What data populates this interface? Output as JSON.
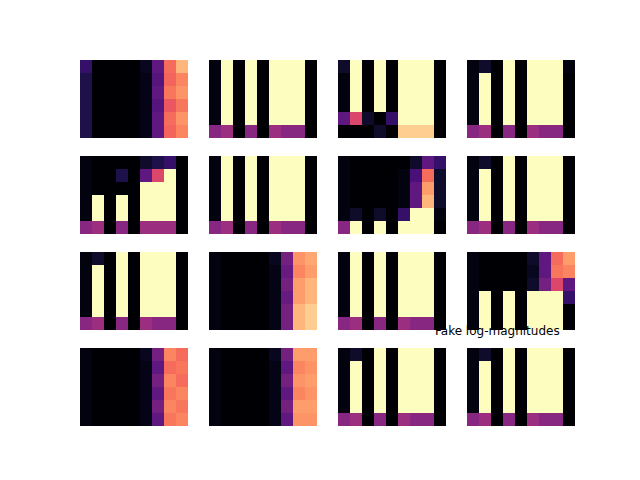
{
  "chart_data": {
    "type": "heatmap",
    "title": "Fake log-magnitudes",
    "color": "magma",
    "tick_labels": false,
    "panels": [
      {
        "cells": [
          [
            0.2,
            0.02,
            0.02,
            0.02,
            0.02,
            0.08,
            0.3,
            0.7,
            0.85
          ],
          [
            0.15,
            0.02,
            0.02,
            0.02,
            0.02,
            0.06,
            0.28,
            0.68,
            0.75
          ],
          [
            0.15,
            0.02,
            0.02,
            0.02,
            0.02,
            0.06,
            0.3,
            0.72,
            0.78
          ],
          [
            0.15,
            0.02,
            0.02,
            0.02,
            0.02,
            0.06,
            0.28,
            0.65,
            0.72
          ],
          [
            0.15,
            0.02,
            0.02,
            0.02,
            0.02,
            0.06,
            0.3,
            0.7,
            0.78
          ],
          [
            0.15,
            0.02,
            0.02,
            0.02,
            0.02,
            0.06,
            0.3,
            0.68,
            0.75
          ]
        ]
      },
      {
        "cells": [
          [
            0.05,
            1,
            0.02,
            1,
            0.02,
            1,
            1,
            1,
            0.02
          ],
          [
            0.05,
            1,
            0.02,
            1,
            0.02,
            1,
            1,
            1,
            0.02
          ],
          [
            0.05,
            1,
            0.02,
            1,
            0.02,
            1,
            1,
            1,
            0.02
          ],
          [
            0.05,
            1,
            0.02,
            1,
            0.02,
            1,
            1,
            1,
            0.02
          ],
          [
            0.05,
            1,
            0.02,
            1,
            0.02,
            1,
            1,
            1,
            0.02
          ],
          [
            0.4,
            0.45,
            0.02,
            0.4,
            0.02,
            0.45,
            0.4,
            0.4,
            0.02
          ]
        ]
      },
      {
        "cells": [
          [
            0.1,
            1,
            0.02,
            1,
            0.02,
            1,
            1,
            1,
            0.02
          ],
          [
            0.05,
            1,
            0.02,
            1,
            0.02,
            1,
            1,
            1,
            0.02
          ],
          [
            0.05,
            1,
            0.02,
            1,
            0.02,
            1,
            1,
            1,
            0.02
          ],
          [
            0.05,
            1,
            0.02,
            1,
            0.02,
            1,
            1,
            1,
            0.02
          ],
          [
            0.3,
            0.6,
            0.1,
            0.02,
            0.2,
            1,
            1,
            1,
            0.02
          ],
          [
            0.02,
            0.02,
            0.02,
            0.1,
            0.02,
            0.9,
            0.9,
            0.9,
            0.02
          ]
        ]
      },
      {
        "cells": [
          [
            0.05,
            0.1,
            0.02,
            1,
            0.02,
            1,
            1,
            1,
            0.05
          ],
          [
            0.05,
            1,
            0.02,
            1,
            0.02,
            1,
            1,
            1,
            0.02
          ],
          [
            0.05,
            1,
            0.02,
            1,
            0.02,
            1,
            1,
            1,
            0.02
          ],
          [
            0.05,
            1,
            0.02,
            1,
            0.02,
            1,
            1,
            1,
            0.02
          ],
          [
            0.05,
            1,
            0.02,
            1,
            0.02,
            1,
            1,
            1,
            0.02
          ],
          [
            0.4,
            0.45,
            0.02,
            0.4,
            0.02,
            0.45,
            0.4,
            0.4,
            0.02
          ]
        ]
      },
      {
        "cells": [
          [
            0.05,
            0.02,
            0.02,
            0.02,
            0.02,
            0.1,
            0.15,
            0.2,
            0.02
          ],
          [
            0.05,
            0.02,
            0.02,
            0.15,
            0.02,
            0.3,
            0.6,
            1,
            0.02
          ],
          [
            0.05,
            0.02,
            0.02,
            0.02,
            0.02,
            1,
            1,
            1,
            0.02
          ],
          [
            0.05,
            1,
            0.02,
            1,
            0.02,
            1,
            1,
            1,
            0.02
          ],
          [
            0.05,
            1,
            0.02,
            1,
            0.02,
            1,
            1,
            1,
            0.02
          ],
          [
            0.4,
            0.45,
            0.02,
            0.4,
            0.02,
            0.45,
            0.45,
            0.45,
            0.02
          ]
        ]
      },
      {
        "cells": [
          [
            0.05,
            1,
            0.02,
            1,
            0.02,
            1,
            1,
            1,
            0.02
          ],
          [
            0.05,
            1,
            0.02,
            1,
            0.02,
            1,
            1,
            1,
            0.02
          ],
          [
            0.05,
            1,
            0.02,
            1,
            0.02,
            1,
            1,
            1,
            0.02
          ],
          [
            0.05,
            1,
            0.02,
            1,
            0.02,
            1,
            1,
            1,
            0.02
          ],
          [
            0.05,
            1,
            0.02,
            1,
            0.02,
            1,
            1,
            1,
            0.02
          ],
          [
            0.4,
            0.45,
            0.02,
            0.4,
            0.02,
            0.45,
            0.4,
            0.4,
            0.02
          ]
        ]
      },
      {
        "cells": [
          [
            0.05,
            0.02,
            0.02,
            0.02,
            0.02,
            0.02,
            0.1,
            0.3,
            0.2
          ],
          [
            0.05,
            0.02,
            0.02,
            0.02,
            0.02,
            0.05,
            0.25,
            0.7,
            0.1
          ],
          [
            0.05,
            0.02,
            0.02,
            0.02,
            0.02,
            0.05,
            0.3,
            0.8,
            0.1
          ],
          [
            0.05,
            0.02,
            0.02,
            0.02,
            0.02,
            0.05,
            0.3,
            0.85,
            0.1
          ],
          [
            0.05,
            0.1,
            0.02,
            0.1,
            0.02,
            0.2,
            1,
            1,
            0.05
          ],
          [
            0.4,
            1,
            0.02,
            1,
            0.02,
            1,
            1,
            1,
            0.02
          ]
        ]
      },
      {
        "cells": [
          [
            0.05,
            0.1,
            0.02,
            1,
            0.02,
            1,
            1,
            1,
            0.02
          ],
          [
            0.05,
            1,
            0.02,
            1,
            0.02,
            1,
            1,
            1,
            0.02
          ],
          [
            0.05,
            1,
            0.02,
            1,
            0.02,
            1,
            1,
            1,
            0.02
          ],
          [
            0.05,
            1,
            0.02,
            1,
            0.02,
            1,
            1,
            1,
            0.02
          ],
          [
            0.05,
            1,
            0.02,
            1,
            0.02,
            1,
            1,
            1,
            0.02
          ],
          [
            0.4,
            0.45,
            0.02,
            0.4,
            0.02,
            0.45,
            0.4,
            0.4,
            0.02
          ]
        ]
      },
      {
        "cells": [
          [
            0.05,
            0.1,
            0.02,
            1,
            0.02,
            1,
            1,
            1,
            0.02
          ],
          [
            0.05,
            1,
            0.02,
            1,
            0.02,
            1,
            1,
            1,
            0.02
          ],
          [
            0.05,
            1,
            0.02,
            1,
            0.02,
            1,
            1,
            1,
            0.02
          ],
          [
            0.05,
            1,
            0.02,
            1,
            0.02,
            1,
            1,
            1,
            0.02
          ],
          [
            0.05,
            1,
            0.02,
            1,
            0.02,
            1,
            1,
            1,
            0.02
          ],
          [
            0.4,
            0.45,
            0.02,
            0.4,
            0.02,
            0.45,
            0.4,
            0.4,
            0.02
          ]
        ]
      },
      {
        "cells": [
          [
            0.05,
            0.02,
            0.02,
            0.02,
            0.02,
            0.08,
            0.35,
            0.78,
            0.82
          ],
          [
            0.05,
            0.02,
            0.02,
            0.02,
            0.02,
            0.06,
            0.32,
            0.75,
            0.8
          ],
          [
            0.05,
            0.02,
            0.02,
            0.02,
            0.02,
            0.06,
            0.35,
            0.8,
            0.85
          ],
          [
            0.05,
            0.02,
            0.02,
            0.02,
            0.02,
            0.06,
            0.32,
            0.8,
            0.85
          ],
          [
            0.05,
            0.02,
            0.02,
            0.02,
            0.02,
            0.06,
            0.35,
            0.85,
            0.9
          ],
          [
            0.05,
            0.02,
            0.02,
            0.02,
            0.02,
            0.06,
            0.35,
            0.85,
            0.9
          ]
        ]
      },
      {
        "cells": [
          [
            0.05,
            1,
            0.02,
            1,
            0.02,
            1,
            1,
            1,
            0.02
          ],
          [
            0.05,
            1,
            0.02,
            1,
            0.02,
            1,
            1,
            1,
            0.02
          ],
          [
            0.05,
            1,
            0.02,
            1,
            0.02,
            1,
            1,
            1,
            0.02
          ],
          [
            0.05,
            1,
            0.02,
            1,
            0.02,
            1,
            1,
            1,
            0.02
          ],
          [
            0.05,
            1,
            0.02,
            1,
            0.02,
            1,
            1,
            1,
            0.02
          ],
          [
            0.4,
            0.45,
            0.02,
            0.4,
            0.02,
            0.45,
            0.4,
            0.4,
            0.02
          ]
        ]
      },
      {
        "cells": [
          [
            0.05,
            0.02,
            0.02,
            0.02,
            0.02,
            0.1,
            0.3,
            0.7,
            0.8
          ],
          [
            0.05,
            0.02,
            0.02,
            0.02,
            0.02,
            0.08,
            0.3,
            0.72,
            0.75
          ],
          [
            0.05,
            0.02,
            0.02,
            0.02,
            0.02,
            0.1,
            0.35,
            0.6,
            0.3
          ],
          [
            0.05,
            1,
            0.02,
            1,
            0.02,
            1,
            1,
            1,
            0.2
          ],
          [
            0.05,
            1,
            0.02,
            1,
            0.02,
            1,
            1,
            1,
            0.02
          ],
          [
            0.05,
            1,
            0.02,
            1,
            0.02,
            1,
            1,
            1,
            0.02
          ]
        ]
      },
      {
        "cells": [
          [
            0.05,
            0.02,
            0.02,
            0.02,
            0.02,
            0.08,
            0.35,
            0.75,
            0.7
          ],
          [
            0.05,
            0.02,
            0.02,
            0.02,
            0.02,
            0.06,
            0.3,
            0.7,
            0.72
          ],
          [
            0.05,
            0.02,
            0.02,
            0.02,
            0.02,
            0.06,
            0.35,
            0.75,
            0.7
          ],
          [
            0.05,
            0.02,
            0.02,
            0.02,
            0.02,
            0.06,
            0.3,
            0.72,
            0.75
          ],
          [
            0.05,
            0.02,
            0.02,
            0.02,
            0.02,
            0.06,
            0.35,
            0.75,
            0.72
          ],
          [
            0.05,
            0.02,
            0.02,
            0.02,
            0.02,
            0.06,
            0.3,
            0.72,
            0.75
          ]
        ]
      },
      {
        "cells": [
          [
            0.05,
            0.02,
            0.02,
            0.02,
            0.02,
            0.08,
            0.35,
            0.8,
            0.8
          ],
          [
            0.05,
            0.02,
            0.02,
            0.02,
            0.02,
            0.06,
            0.3,
            0.75,
            0.78
          ],
          [
            0.05,
            0.02,
            0.02,
            0.02,
            0.02,
            0.06,
            0.35,
            0.78,
            0.8
          ],
          [
            0.05,
            0.02,
            0.02,
            0.02,
            0.02,
            0.06,
            0.3,
            0.75,
            0.78
          ],
          [
            0.05,
            0.02,
            0.02,
            0.02,
            0.02,
            0.06,
            0.35,
            0.8,
            0.8
          ],
          [
            0.05,
            0.02,
            0.02,
            0.02,
            0.02,
            0.06,
            0.3,
            0.78,
            0.78
          ]
        ]
      },
      {
        "cells": [
          [
            0.05,
            0.1,
            0.02,
            1,
            0.02,
            1,
            1,
            1,
            0.02
          ],
          [
            0.05,
            1,
            0.02,
            1,
            0.02,
            1,
            1,
            1,
            0.02
          ],
          [
            0.05,
            1,
            0.02,
            1,
            0.02,
            1,
            1,
            1,
            0.02
          ],
          [
            0.05,
            1,
            0.02,
            1,
            0.02,
            1,
            1,
            1,
            0.02
          ],
          [
            0.05,
            1,
            0.02,
            1,
            0.02,
            1,
            1,
            1,
            0.02
          ],
          [
            0.4,
            0.45,
            0.02,
            0.4,
            0.02,
            0.45,
            0.4,
            0.4,
            0.02
          ]
        ]
      },
      {
        "cells": [
          [
            0.05,
            0.1,
            0.02,
            1,
            0.02,
            1,
            1,
            1,
            0.02
          ],
          [
            0.05,
            1,
            0.02,
            1,
            0.02,
            1,
            1,
            1,
            0.02
          ],
          [
            0.05,
            1,
            0.02,
            1,
            0.02,
            1,
            1,
            1,
            0.02
          ],
          [
            0.05,
            1,
            0.02,
            1,
            0.02,
            1,
            1,
            1,
            0.02
          ],
          [
            0.05,
            1,
            0.02,
            1,
            0.02,
            1,
            1,
            1,
            0.02
          ],
          [
            0.4,
            0.45,
            0.02,
            0.4,
            0.02,
            0.45,
            0.4,
            0.4,
            0.02
          ]
        ]
      }
    ]
  }
}
